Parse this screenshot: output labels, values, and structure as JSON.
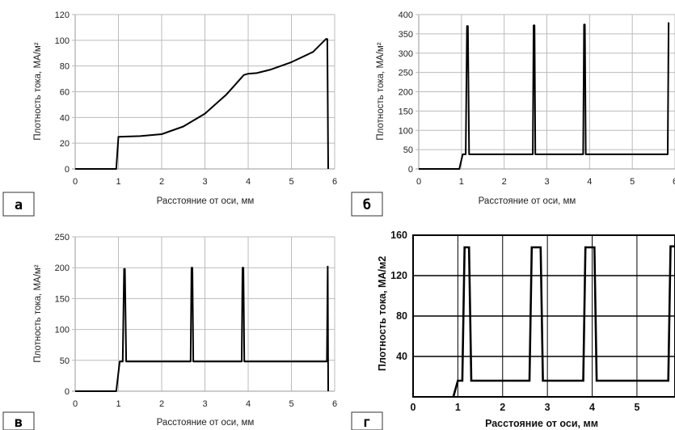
{
  "chart_data": [
    {
      "id": "a",
      "panel_label": "а",
      "type": "line",
      "xlabel": "Расстояние от оси, мм",
      "ylabel": "Плотность тока, МА/м²",
      "xlim": [
        0,
        6
      ],
      "ylim": [
        0,
        120
      ],
      "xticks": [
        "0",
        "1",
        "2",
        "3",
        "4",
        "5",
        "6"
      ],
      "yticks": [
        "0",
        "20",
        "40",
        "60",
        "80",
        "100",
        "120"
      ],
      "grid": true,
      "x": [
        0,
        0.95,
        1.0,
        1.5,
        2.0,
        2.5,
        3.0,
        3.5,
        3.9,
        4.0,
        4.2,
        4.5,
        5.0,
        5.5,
        5.8,
        5.83,
        5.85
      ],
      "y": [
        0,
        0,
        25,
        25.5,
        27,
        33,
        43,
        58,
        73,
        74,
        74.5,
        77,
        83,
        91,
        101,
        101,
        0
      ]
    },
    {
      "id": "b",
      "panel_label": "б",
      "type": "line",
      "xlabel": "Расстояние от оси, мм",
      "ylabel": "Плотность тока, МА/м²",
      "xlim": [
        0,
        6
      ],
      "ylim": [
        0,
        400
      ],
      "xticks": [
        "0",
        "1",
        "2",
        "3",
        "4",
        "5",
        "6"
      ],
      "yticks": [
        "0",
        "50",
        "100",
        "150",
        "200",
        "250",
        "300",
        "350",
        "400"
      ],
      "grid": true,
      "x": [
        0,
        0.95,
        1.03,
        1.1,
        1.13,
        1.15,
        1.18,
        2.67,
        2.69,
        2.71,
        2.73,
        3.85,
        3.87,
        3.89,
        3.91,
        5.83,
        5.85
      ],
      "y": [
        0,
        0,
        38,
        38,
        370,
        370,
        38,
        38,
        372,
        372,
        38,
        38,
        374,
        374,
        38,
        38,
        380
      ]
    },
    {
      "id": "v",
      "panel_label": "в",
      "type": "line",
      "xlabel": "Расстояние от оси, мм",
      "ylabel": "Плотность тока, МА/м²",
      "xlim": [
        0,
        6
      ],
      "ylim": [
        0,
        250
      ],
      "xticks": [
        "0",
        "1",
        "2",
        "3",
        "4",
        "5",
        "6"
      ],
      "yticks": [
        "0",
        "50",
        "100",
        "150",
        "200",
        "250"
      ],
      "grid": true,
      "x": [
        0,
        0.95,
        1.03,
        1.1,
        1.13,
        1.15,
        1.18,
        2.67,
        2.69,
        2.71,
        2.73,
        3.85,
        3.87,
        3.89,
        3.91,
        5.82,
        5.84,
        5.85
      ],
      "y": [
        0,
        0,
        48,
        48,
        198,
        198,
        48,
        48,
        200,
        200,
        48,
        48,
        200,
        200,
        48,
        48,
        202,
        0
      ]
    },
    {
      "id": "g",
      "panel_label": "г",
      "type": "line",
      "xlabel": "Расстояние от оси, мм",
      "ylabel": "Плотность тока, МА/м2",
      "xlim": [
        0,
        5.85
      ],
      "ylim": [
        0,
        160
      ],
      "xticks": [
        "0",
        "1",
        "2",
        "3",
        "4",
        "5"
      ],
      "yticks": [
        "40",
        "80",
        "120",
        "160"
      ],
      "grid": true,
      "x": [
        0.9,
        1.0,
        1.1,
        1.15,
        1.25,
        1.3,
        2.6,
        2.65,
        2.85,
        2.9,
        3.8,
        3.85,
        4.05,
        4.1,
        5.7,
        5.75,
        5.85
      ],
      "y": [
        0,
        16,
        16,
        148,
        148,
        16,
        16,
        148,
        148,
        16,
        16,
        148,
        148,
        16,
        16,
        149,
        149
      ]
    }
  ]
}
